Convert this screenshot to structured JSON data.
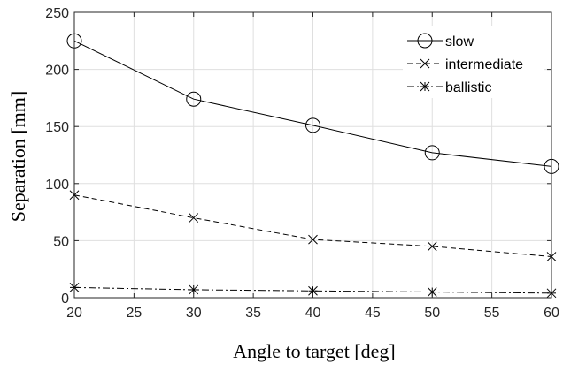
{
  "chart_data": {
    "type": "line",
    "title": "",
    "xlabel": "Angle to target [deg]",
    "ylabel": "Separation [mm]",
    "x": [
      20,
      30,
      40,
      50,
      60
    ],
    "xlim": [
      20,
      60
    ],
    "ylim": [
      0,
      250
    ],
    "xticks": [
      "20",
      "25",
      "30",
      "35",
      "40",
      "45",
      "50",
      "55",
      "60"
    ],
    "yticks": [
      "0",
      "50",
      "100",
      "150",
      "200",
      "250"
    ],
    "grid": true,
    "legend_position": "top-right",
    "series": [
      {
        "name": "slow",
        "values": [
          225,
          174,
          151,
          127,
          115
        ],
        "line_style": "solid",
        "marker": "circle"
      },
      {
        "name": "intermediate",
        "values": [
          90,
          70,
          51,
          45,
          36
        ],
        "line_style": "dashed",
        "marker": "x"
      },
      {
        "name": "ballistic",
        "values": [
          9,
          7,
          6,
          5,
          4
        ],
        "line_style": "dash-dot",
        "marker": "star"
      }
    ],
    "colors": {
      "axis": "#262626",
      "grid": "#dfdfdf",
      "line": "#000000"
    }
  }
}
